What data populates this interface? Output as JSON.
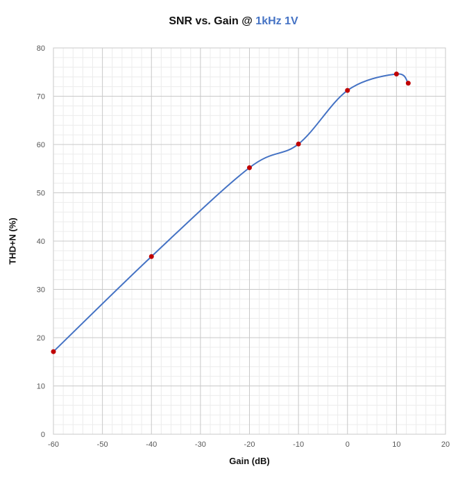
{
  "chart_data": {
    "type": "line",
    "title_main": "SNR vs. Gain @ ",
    "title_highlight": "1kHz 1V",
    "title_highlight_color": "#4472c4",
    "xlabel": "Gain (dB)",
    "ylabel": "THD+N  (%)",
    "xlim": [
      -60,
      20
    ],
    "ylim": [
      0,
      80
    ],
    "x_ticks": [
      -60,
      -50,
      -40,
      -30,
      -20,
      -10,
      0,
      10,
      20
    ],
    "y_ticks": [
      0,
      10,
      20,
      30,
      40,
      50,
      60,
      70,
      80
    ],
    "grid": true,
    "minor_grid": true,
    "line_color": "#4472c4",
    "marker_color": "#c00000",
    "smooth": true,
    "series": [
      {
        "x": [
          -60,
          -40,
          -20,
          -10,
          0,
          10,
          12.4
        ],
        "y": [
          17.1,
          36.8,
          55.2,
          60.1,
          71.2,
          74.6,
          72.7
        ]
      }
    ]
  }
}
